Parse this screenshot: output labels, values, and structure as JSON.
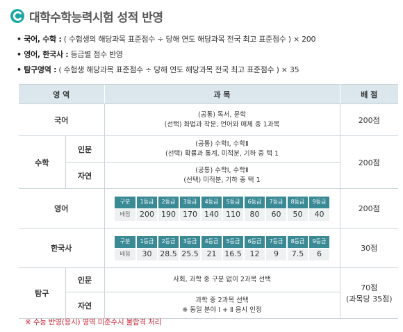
{
  "title": "대학수학능력시험 성적 반영",
  "colors": {
    "accent": "#1aa5a5",
    "header_bg": "#dbe7ec",
    "grade_header": "#3a8a96",
    "note": "#c92a3a"
  },
  "bullets": [
    {
      "label": "• 국어, 수학 :",
      "text": " ( 수험생의 해당과목 표준점수 ÷ 당해 연도 해당과목 전국 최고 표준점수 ) × 200"
    },
    {
      "label": "• 영어, 한국사 :",
      "text": " 등급별 점수 반영"
    },
    {
      "label": "• 탐구영역 :",
      "text": " ( 수험생 해당과목 표준점수 ÷ 당해 연도 해당과목 전국 최고 표준점수 ) × 35"
    }
  ],
  "table": {
    "headers": {
      "area": "영 역",
      "subject": "과 목",
      "score": "배 점"
    },
    "korean": {
      "area": "국어",
      "line1": "(공통) 독서, 문학",
      "line2": "(선택) 화법과 작문, 언어와 매체 중 1과목",
      "score": "200점"
    },
    "math": {
      "area": "수학",
      "humanities": {
        "label": "인문",
        "line1": "(공통) 수학Ⅰ, 수학Ⅱ",
        "line2": "(선택) 확률과 통계, 미적분, 기하 중 택 1"
      },
      "science": {
        "label": "자연",
        "line1": "(공통) 수학Ⅰ, 수학Ⅱ",
        "line2": "(선택) 미적분, 기하 중 택 1"
      },
      "score": "200점"
    },
    "english": {
      "area": "영어",
      "header_label": "구분",
      "row_label": "배점",
      "grades": [
        "1등급",
        "2등급",
        "3등급",
        "4등급",
        "5등급",
        "6등급",
        "7등급",
        "8등급",
        "9등급"
      ],
      "points": [
        "200",
        "190",
        "170",
        "140",
        "110",
        "80",
        "60",
        "50",
        "40"
      ],
      "score": "200점"
    },
    "history": {
      "area": "한국사",
      "header_label": "구분",
      "row_label": "배점",
      "grades": [
        "1등급",
        "2등급",
        "3등급",
        "4등급",
        "5등급",
        "6등급",
        "7등급",
        "8등급",
        "9등급"
      ],
      "points": [
        "30",
        "28.5",
        "25.5",
        "21",
        "16.5",
        "12",
        "9",
        "7.5",
        "6"
      ],
      "score": "30점"
    },
    "inquiry": {
      "area": "탐구",
      "humanities": {
        "label": "인문",
        "line1": "사회, 과학 중 구분 없이 2과목 선택"
      },
      "science": {
        "label": "자연",
        "line1": "과학 중 2과목 선택",
        "line2": "※ 동일 분야 Ⅰ + Ⅱ 응시 인정"
      },
      "score_line1": "70점",
      "score_line2": "(과목당 35점)"
    }
  },
  "note": "※ 수능 반영(응시) 영역 미준수시 불합격 처리"
}
